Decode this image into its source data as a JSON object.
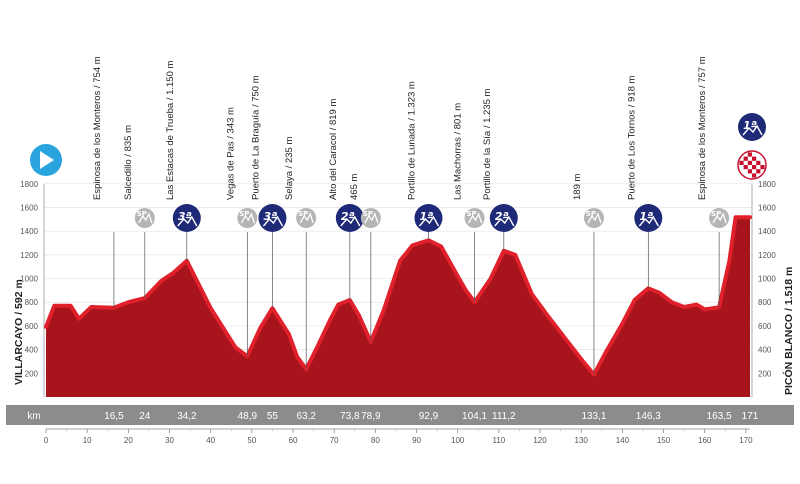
{
  "chart_data": {
    "type": "area",
    "title": "",
    "xlabel": "km",
    "ylabel": "",
    "xlim": [
      0,
      171
    ],
    "ylim": [
      0,
      1800
    ],
    "x_ticks": [
      0,
      10,
      20,
      30,
      40,
      50,
      60,
      70,
      80,
      90,
      100,
      110,
      120,
      130,
      140,
      150,
      160,
      170
    ],
    "y_ticks": [
      200,
      400,
      600,
      800,
      1000,
      1200,
      1400,
      1600,
      1800
    ],
    "grid": true,
    "start": "VILLARCAYO / 592 m",
    "finish": "PICÓN BLANCO / 1.518 m",
    "series": [
      {
        "x": [
          0,
          2,
          6,
          8,
          11,
          16.5,
          20,
          24,
          28,
          31,
          34.2,
          40,
          46,
          48.9,
          52,
          55,
          59,
          61,
          63.2,
          66,
          69,
          71,
          73.8,
          76,
          78.9,
          82,
          86,
          89,
          92.9,
          96,
          100,
          102,
          104.1,
          108,
          111.2,
          114,
          118,
          122,
          126,
          130,
          133.1,
          136,
          140,
          143,
          146.3,
          149,
          152,
          155,
          158,
          160,
          163.5,
          166,
          167.5,
          171
        ],
        "y": [
          592,
          770,
          770,
          660,
          760,
          754,
          800,
          835,
          980,
          1050,
          1150,
          750,
          420,
          343,
          580,
          750,
          530,
          340,
          235,
          430,
          650,
          780,
          819,
          690,
          465,
          730,
          1150,
          1280,
          1323,
          1270,
          1020,
          900,
          801,
          1000,
          1235,
          1200,
          870,
          680,
          500,
          320,
          189,
          380,
          620,
          820,
          918,
          880,
          800,
          760,
          780,
          740,
          757,
          1150,
          1518,
          1518
        ]
      }
    ],
    "waypoints": [
      {
        "km": 16.5,
        "label": "Espinosa de los Monteros / 754 m",
        "category": ""
      },
      {
        "km": 24,
        "label": "Salcedillo / 835 m",
        "category": "SP"
      },
      {
        "km": 34.2,
        "label": "Las Estacas de Trueba / 1.150 m",
        "category": "3ª"
      },
      {
        "km": 48.9,
        "label": "Vegas de Pas / 343 m",
        "category": "SP"
      },
      {
        "km": 55,
        "label": "Puerto de La Braguía / 750 m",
        "category": "3ª"
      },
      {
        "km": 63.2,
        "label": "Selaya / 235 m",
        "category": "SP"
      },
      {
        "km": 73.8,
        "label": "Alto del Caracol / 819 m",
        "category": "2ª"
      },
      {
        "km": 78.9,
        "label": "465 m",
        "category": "SP"
      },
      {
        "km": 92.9,
        "label": "Portillo de Lunada / 1.323 m",
        "category": "1ª"
      },
      {
        "km": 104.1,
        "label": "Las Machorras / 801 m",
        "category": "SP"
      },
      {
        "km": 111.2,
        "label": "Portillo de la Sía / 1.235 m",
        "category": "2ª"
      },
      {
        "km": 133.1,
        "label": "189 m",
        "category": "SP"
      },
      {
        "km": 146.3,
        "label": "Puerto de Los Tornos / 918 m",
        "category": "1ª"
      },
      {
        "km": 163.5,
        "label": "Espinosa de los Monteros / 757 m",
        "category": "SP"
      }
    ],
    "km_labels": [
      "km",
      "16,5",
      "24",
      "34,2",
      "48,9",
      "55",
      "63,2",
      "73,8",
      "78,9",
      "92,9",
      "104,1",
      "111,2",
      "133,1",
      "146,3",
      "163,5",
      "171"
    ],
    "finish_category": "1ª",
    "colors": {
      "profile": "#a8141b",
      "profile_edge": "#e0202a",
      "climb_badge": "#1e2a78",
      "sprint_badge": "#b5b5b5",
      "km_bar": "#8c8c8c",
      "start_badge": "#2aa4df"
    }
  }
}
